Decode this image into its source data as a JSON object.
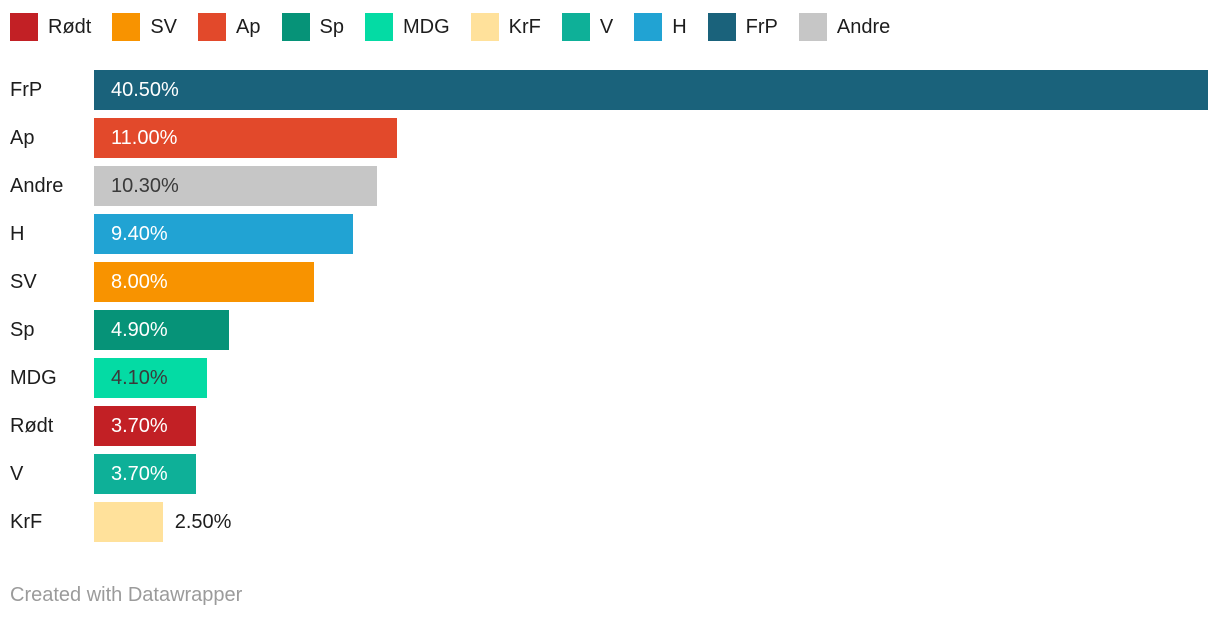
{
  "legend": {
    "items": [
      {
        "label": "Rødt",
        "color": "#C22025"
      },
      {
        "label": "SV",
        "color": "#F89300"
      },
      {
        "label": "Ap",
        "color": "#E2492B"
      },
      {
        "label": "Sp",
        "color": "#069378"
      },
      {
        "label": "MDG",
        "color": "#04DBA4"
      },
      {
        "label": "KrF",
        "color": "#FFE19B"
      },
      {
        "label": "V",
        "color": "#0EB098"
      },
      {
        "label": "H",
        "color": "#21A3D3"
      },
      {
        "label": "FrP",
        "color": "#1A627B"
      },
      {
        "label": "Andre",
        "color": "#C6C6C6"
      }
    ]
  },
  "chart_data": {
    "type": "bar",
    "orientation": "horizontal",
    "categories": [
      "FrP",
      "Ap",
      "Andre",
      "H",
      "SV",
      "Sp",
      "MDG",
      "Rødt",
      "V",
      "KrF"
    ],
    "values": [
      40.5,
      11.0,
      10.3,
      9.4,
      8.0,
      4.9,
      4.1,
      3.7,
      3.7,
      2.5
    ],
    "value_labels": [
      "40.50%",
      "11.00%",
      "10.30%",
      "9.40%",
      "8.00%",
      "4.90%",
      "4.10%",
      "3.70%",
      "3.70%",
      "2.50%"
    ],
    "bar_colors": [
      "#1A627B",
      "#E2492B",
      "#C6C6C6",
      "#21A3D3",
      "#F89300",
      "#069378",
      "#04DBA4",
      "#C22025",
      "#0EB098",
      "#FFE19B"
    ],
    "value_label_colors": [
      "#FFFFFF",
      "#FFFFFF",
      "#3A3A3A",
      "#FFFFFF",
      "#FFFFFF",
      "#FFFFFF",
      "#3A3A3A",
      "#FFFFFF",
      "#FFFFFF",
      "#1D1D1D"
    ],
    "value_label_placement": [
      "inside",
      "inside",
      "inside",
      "inside",
      "inside",
      "inside",
      "inside",
      "inside",
      "inside",
      "outside"
    ],
    "xlim": [
      0,
      40.5
    ],
    "grid": false,
    "legend_position": "top"
  },
  "footer": {
    "credit": "Created with Datawrapper"
  }
}
